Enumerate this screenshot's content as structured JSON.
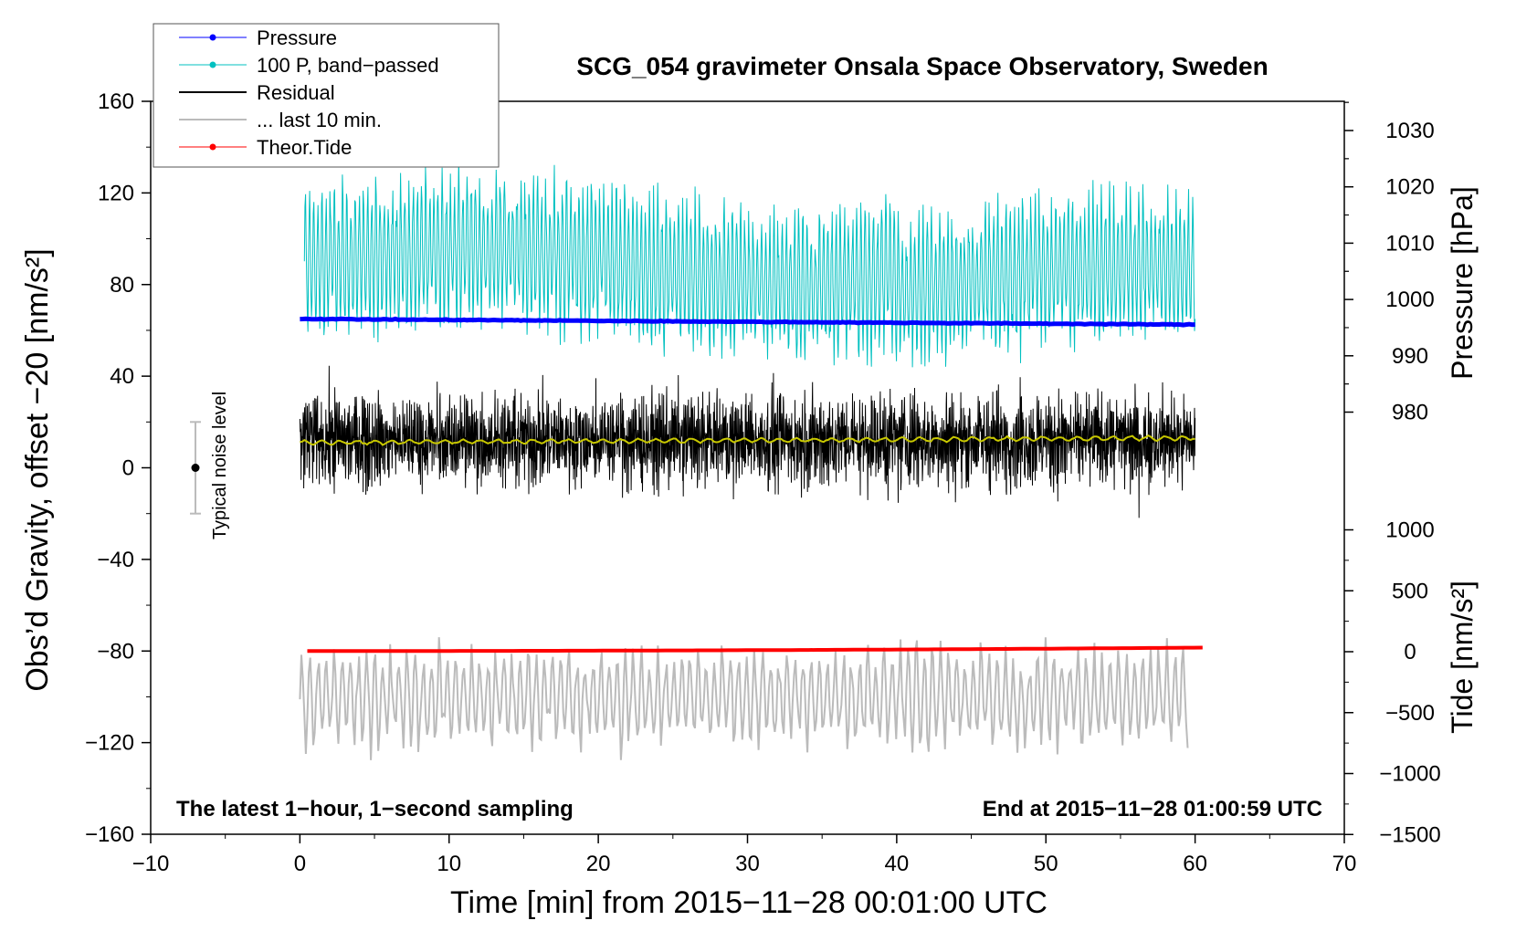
{
  "chart_data": {
    "type": "line",
    "title": "SCG_054 gravimeter Onsala Space Observatory, Sweden",
    "xlabel": "Time [min] from 2015−11−28 00:01:00 UTC",
    "ylabel_left": "Obs’d Gravity, offset −20 [nm/s²]",
    "ylabel_right_top": "Pressure [hPa]",
    "ylabel_right_bottom": "Tide [nm/s²]",
    "xlim": [
      -10,
      70
    ],
    "ylim": [
      -160,
      160
    ],
    "pressure_axis_range": [
      970,
      1035
    ],
    "tide_axis_range": [
      -1500,
      1000
    ],
    "x_ticks": [
      "−10",
      "0",
      "10",
      "20",
      "30",
      "40",
      "50",
      "60",
      "70"
    ],
    "x_tick_values": [
      -10,
      0,
      10,
      20,
      30,
      40,
      50,
      60,
      70
    ],
    "y_ticks": [
      "160",
      "120",
      "80",
      "40",
      "0",
      "−40",
      "−80",
      "−120",
      "−160"
    ],
    "y_tick_values": [
      160,
      120,
      80,
      40,
      0,
      -40,
      -80,
      -120,
      -160
    ],
    "pressure_ticks": [
      "1030",
      "1020",
      "1010",
      "1000",
      "990",
      "980"
    ],
    "pressure_tick_values": [
      1030,
      1020,
      1010,
      1000,
      990,
      980
    ],
    "tide_ticks": [
      "1000",
      "500",
      "0",
      "−500",
      "−1000",
      "−1500"
    ],
    "tide_tick_values": [
      1000,
      500,
      0,
      -500,
      -1000,
      -1500
    ],
    "annotation_left": "The latest 1−hour, 1−second sampling",
    "annotation_right": "End at 2015−11−28 01:00:59 UTC",
    "noise_label": "Typical noise level",
    "noise_bar": {
      "x": -7,
      "center": 0,
      "low": -20,
      "high": 20
    },
    "legend": [
      {
        "label": "Pressure",
        "color": "#0000ff",
        "marker": true
      },
      {
        "label": "100 P, band−passed",
        "color": "#00c0c0",
        "marker": true
      },
      {
        "label": "Residual",
        "color": "#000000",
        "marker": false
      },
      {
        "label": "... last 10 min.",
        "color": "#bbbbbb",
        "marker": false
      },
      {
        "label": "Theor.Tide",
        "color": "#ff0000",
        "marker": true
      }
    ],
    "series": [
      {
        "name": "Pressure",
        "color": "#0000ff",
        "x_range": [
          0,
          60
        ],
        "approx_start": 65,
        "approx_end": 62.5
      },
      {
        "name": "100 P, band−passed",
        "color": "#00c0c0",
        "x_range": [
          0.3,
          60
        ],
        "approx_mean": 88,
        "approx_amplitude": 24
      },
      {
        "name": "Residual",
        "color": "#000000",
        "x_range": [
          0,
          60
        ],
        "approx_mean": 12,
        "approx_amplitude": 22
      },
      {
        "name": "Residual smoothed",
        "color": "#c8c800",
        "x_range": [
          0,
          60
        ],
        "approx_start": 11,
        "approx_end": 13
      },
      {
        "name": "... last 10 min.",
        "color": "#bbbbbb",
        "x_range": [
          0,
          59.5
        ],
        "approx_mean": -100,
        "approx_amplitude": 18
      },
      {
        "name": "Theor.Tide",
        "color": "#ff0000",
        "x_range": [
          0.5,
          60.5
        ],
        "approx_start": -80,
        "approx_end": -78.5
      }
    ]
  }
}
